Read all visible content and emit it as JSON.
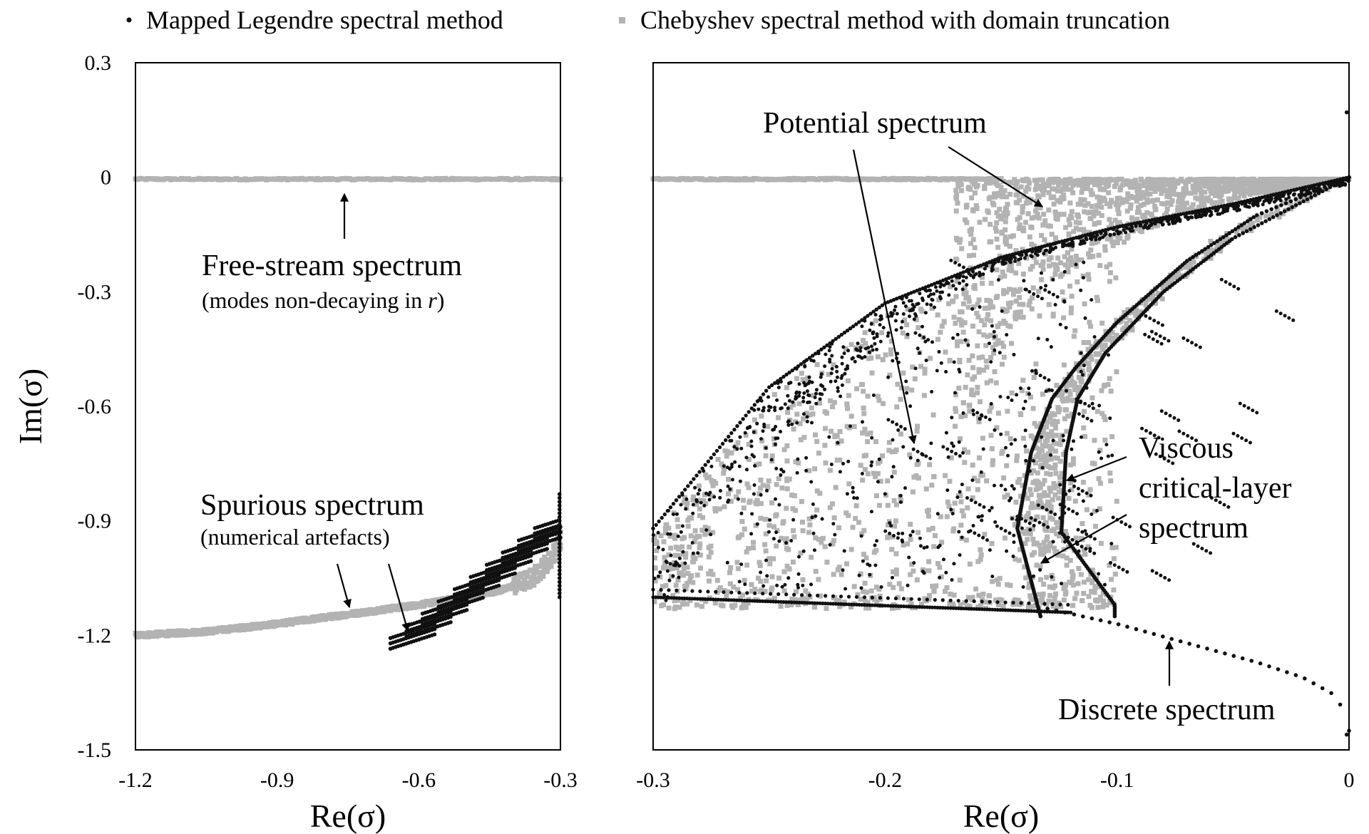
{
  "legend": {
    "legendre_label": "Mapped Legendre spectral method",
    "chebyshev_label": "Chebyshev spectral method with domain truncation",
    "legendre_color": "#111111",
    "chebyshev_color": "#b3b3b3"
  },
  "chart_data": [
    {
      "type": "scatter",
      "title": "",
      "xlabel": "Re(σ)",
      "ylabel": "Im(σ)",
      "xlim": [
        -1.2,
        -0.3
      ],
      "ylim": [
        -1.5,
        0.3
      ],
      "xticks": [
        "-1.2",
        "-0.9",
        "-0.6",
        "-0.3"
      ],
      "yticks": [
        "0.3",
        "0",
        "-0.3",
        "-0.6",
        "-0.9",
        "-1.2",
        "-1.5"
      ],
      "series": [
        {
          "name": "Chebyshev spectral method with domain truncation",
          "regions": [
            {
              "name": "free-stream line",
              "x": [
                -1.2,
                -0.3
              ],
              "y": [
                -0.005,
                -0.005
              ]
            },
            {
              "name": "spurious curve",
              "x": [
                -1.2,
                -1.05,
                -0.9,
                -0.75,
                -0.6,
                -0.5,
                -0.42,
                -0.36,
                -0.32,
                -0.3
              ],
              "y": [
                -1.2,
                -1.19,
                -1.17,
                -1.145,
                -1.12,
                -1.1,
                -1.08,
                -1.05,
                -1.0,
                -0.95
              ]
            }
          ]
        },
        {
          "name": "Mapped Legendre spectral method",
          "regions": [
            {
              "name": "spurious stripes",
              "x": [
                -0.66,
                -0.3
              ],
              "y": [
                -1.23,
                -0.83
              ]
            }
          ]
        }
      ],
      "annotations": {
        "free_stream": "Free-stream spectrum",
        "free_stream_sub_a": "(modes non-decaying in ",
        "free_stream_sub_r": "r",
        "free_stream_sub_b": ")",
        "spurious": "Spurious spectrum",
        "spurious_sub": "(numerical artefacts)"
      }
    },
    {
      "type": "scatter",
      "title": "",
      "xlabel": "Re(σ)",
      "ylabel": "",
      "xlim": [
        -0.3,
        0
      ],
      "ylim": [
        -1.5,
        0.3
      ],
      "xticks": [
        "-0.3",
        "-0.2",
        "-0.1",
        "0"
      ],
      "series": [
        {
          "name": "Chebyshev spectral method with domain truncation",
          "regions": [
            {
              "name": "free-stream line",
              "x": [
                -0.3,
                -0.15
              ],
              "y": [
                -0.005,
                -0.005
              ]
            },
            {
              "name": "potential fan",
              "x": [
                -0.17,
                0
              ],
              "y": [
                -0.75,
                0
              ]
            },
            {
              "name": "interior cloud",
              "x": [
                -0.3,
                -0.1
              ],
              "y": [
                -1.12,
                -0.15
              ]
            },
            {
              "name": "viscous branches",
              "x": [
                -0.14,
                -0.11,
                -0.09,
                -0.05,
                0
              ],
              "y": [
                -1.12,
                -0.85,
                -0.6,
                -0.3,
                0
              ]
            }
          ]
        },
        {
          "name": "Mapped Legendre spectral method",
          "regions": [
            {
              "name": "potential upper envelope",
              "x": [
                -0.3,
                -0.25,
                -0.2,
                -0.15,
                -0.1,
                -0.05,
                0
              ],
              "y": [
                -0.92,
                -0.55,
                -0.33,
                -0.21,
                -0.13,
                -0.07,
                0
              ]
            },
            {
              "name": "viscous left branch",
              "x": [
                -0.133,
                -0.143,
                -0.137,
                -0.128,
                -0.118,
                -0.1,
                -0.07,
                -0.04,
                0
              ],
              "y": [
                -1.15,
                -0.92,
                -0.72,
                -0.58,
                -0.5,
                -0.38,
                -0.22,
                -0.1,
                0
              ]
            },
            {
              "name": "viscous right branch",
              "x": [
                -0.101,
                -0.124,
                -0.122,
                -0.117,
                -0.105,
                -0.08,
                -0.05,
                0
              ],
              "y": [
                -1.12,
                -0.93,
                -0.72,
                -0.58,
                -0.46,
                -0.3,
                -0.16,
                0
              ]
            },
            {
              "name": "bottom line",
              "x": [
                -0.3,
                -0.12
              ],
              "y": [
                -1.1,
                -1.14
              ]
            },
            {
              "name": "discrete spectrum",
              "x": [
                -0.13,
                -0.1,
                -0.07,
                -0.04,
                -0.02,
                -0.005,
                0
              ],
              "y": [
                -1.13,
                -1.17,
                -1.22,
                -1.27,
                -1.31,
                -1.36,
                -1.45
              ]
            },
            {
              "name": "isolated points",
              "x": [
                -0.001,
                -0.001
              ],
              "y": [
                0.17,
                -1.46
              ]
            }
          ]
        }
      ],
      "annotations": {
        "potential": "Potential spectrum",
        "viscous_a": "Viscous",
        "viscous_b": "critical-layer",
        "viscous_c": "spectrum",
        "discrete": "Discrete spectrum"
      }
    }
  ]
}
